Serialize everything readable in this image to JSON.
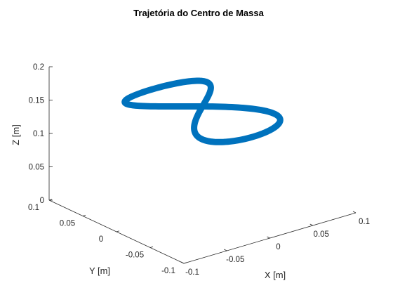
{
  "chart_data": {
    "type": "line",
    "projection": "3d",
    "title": "Trajetória do Centro de Massa",
    "xlabel": "X [m]",
    "ylabel": "Y [m]",
    "zlabel": "Z [m]",
    "xlim": [
      -0.1,
      0.1
    ],
    "ylim": [
      -0.1,
      0.1
    ],
    "zlim": [
      0,
      0.2
    ],
    "x_ticks": [
      "-0.1",
      "-0.05",
      "0",
      "0.05",
      "0.1"
    ],
    "y_ticks": [
      "-0.1",
      "-0.05",
      "0",
      "0.05",
      "0.1"
    ],
    "z_ticks": [
      "0",
      "0.05",
      "0.1",
      "0.15",
      "0.2"
    ],
    "grid": false,
    "series": [
      {
        "color": "#0072BD",
        "shape": "figure-eight",
        "center": {
          "x": 0.0,
          "y": 0.0,
          "z": 0.145
        },
        "x_range": [
          -0.045,
          0.045
        ],
        "y_range": [
          -0.075,
          0.075
        ],
        "z_range": [
          0.14,
          0.15
        ]
      }
    ]
  }
}
